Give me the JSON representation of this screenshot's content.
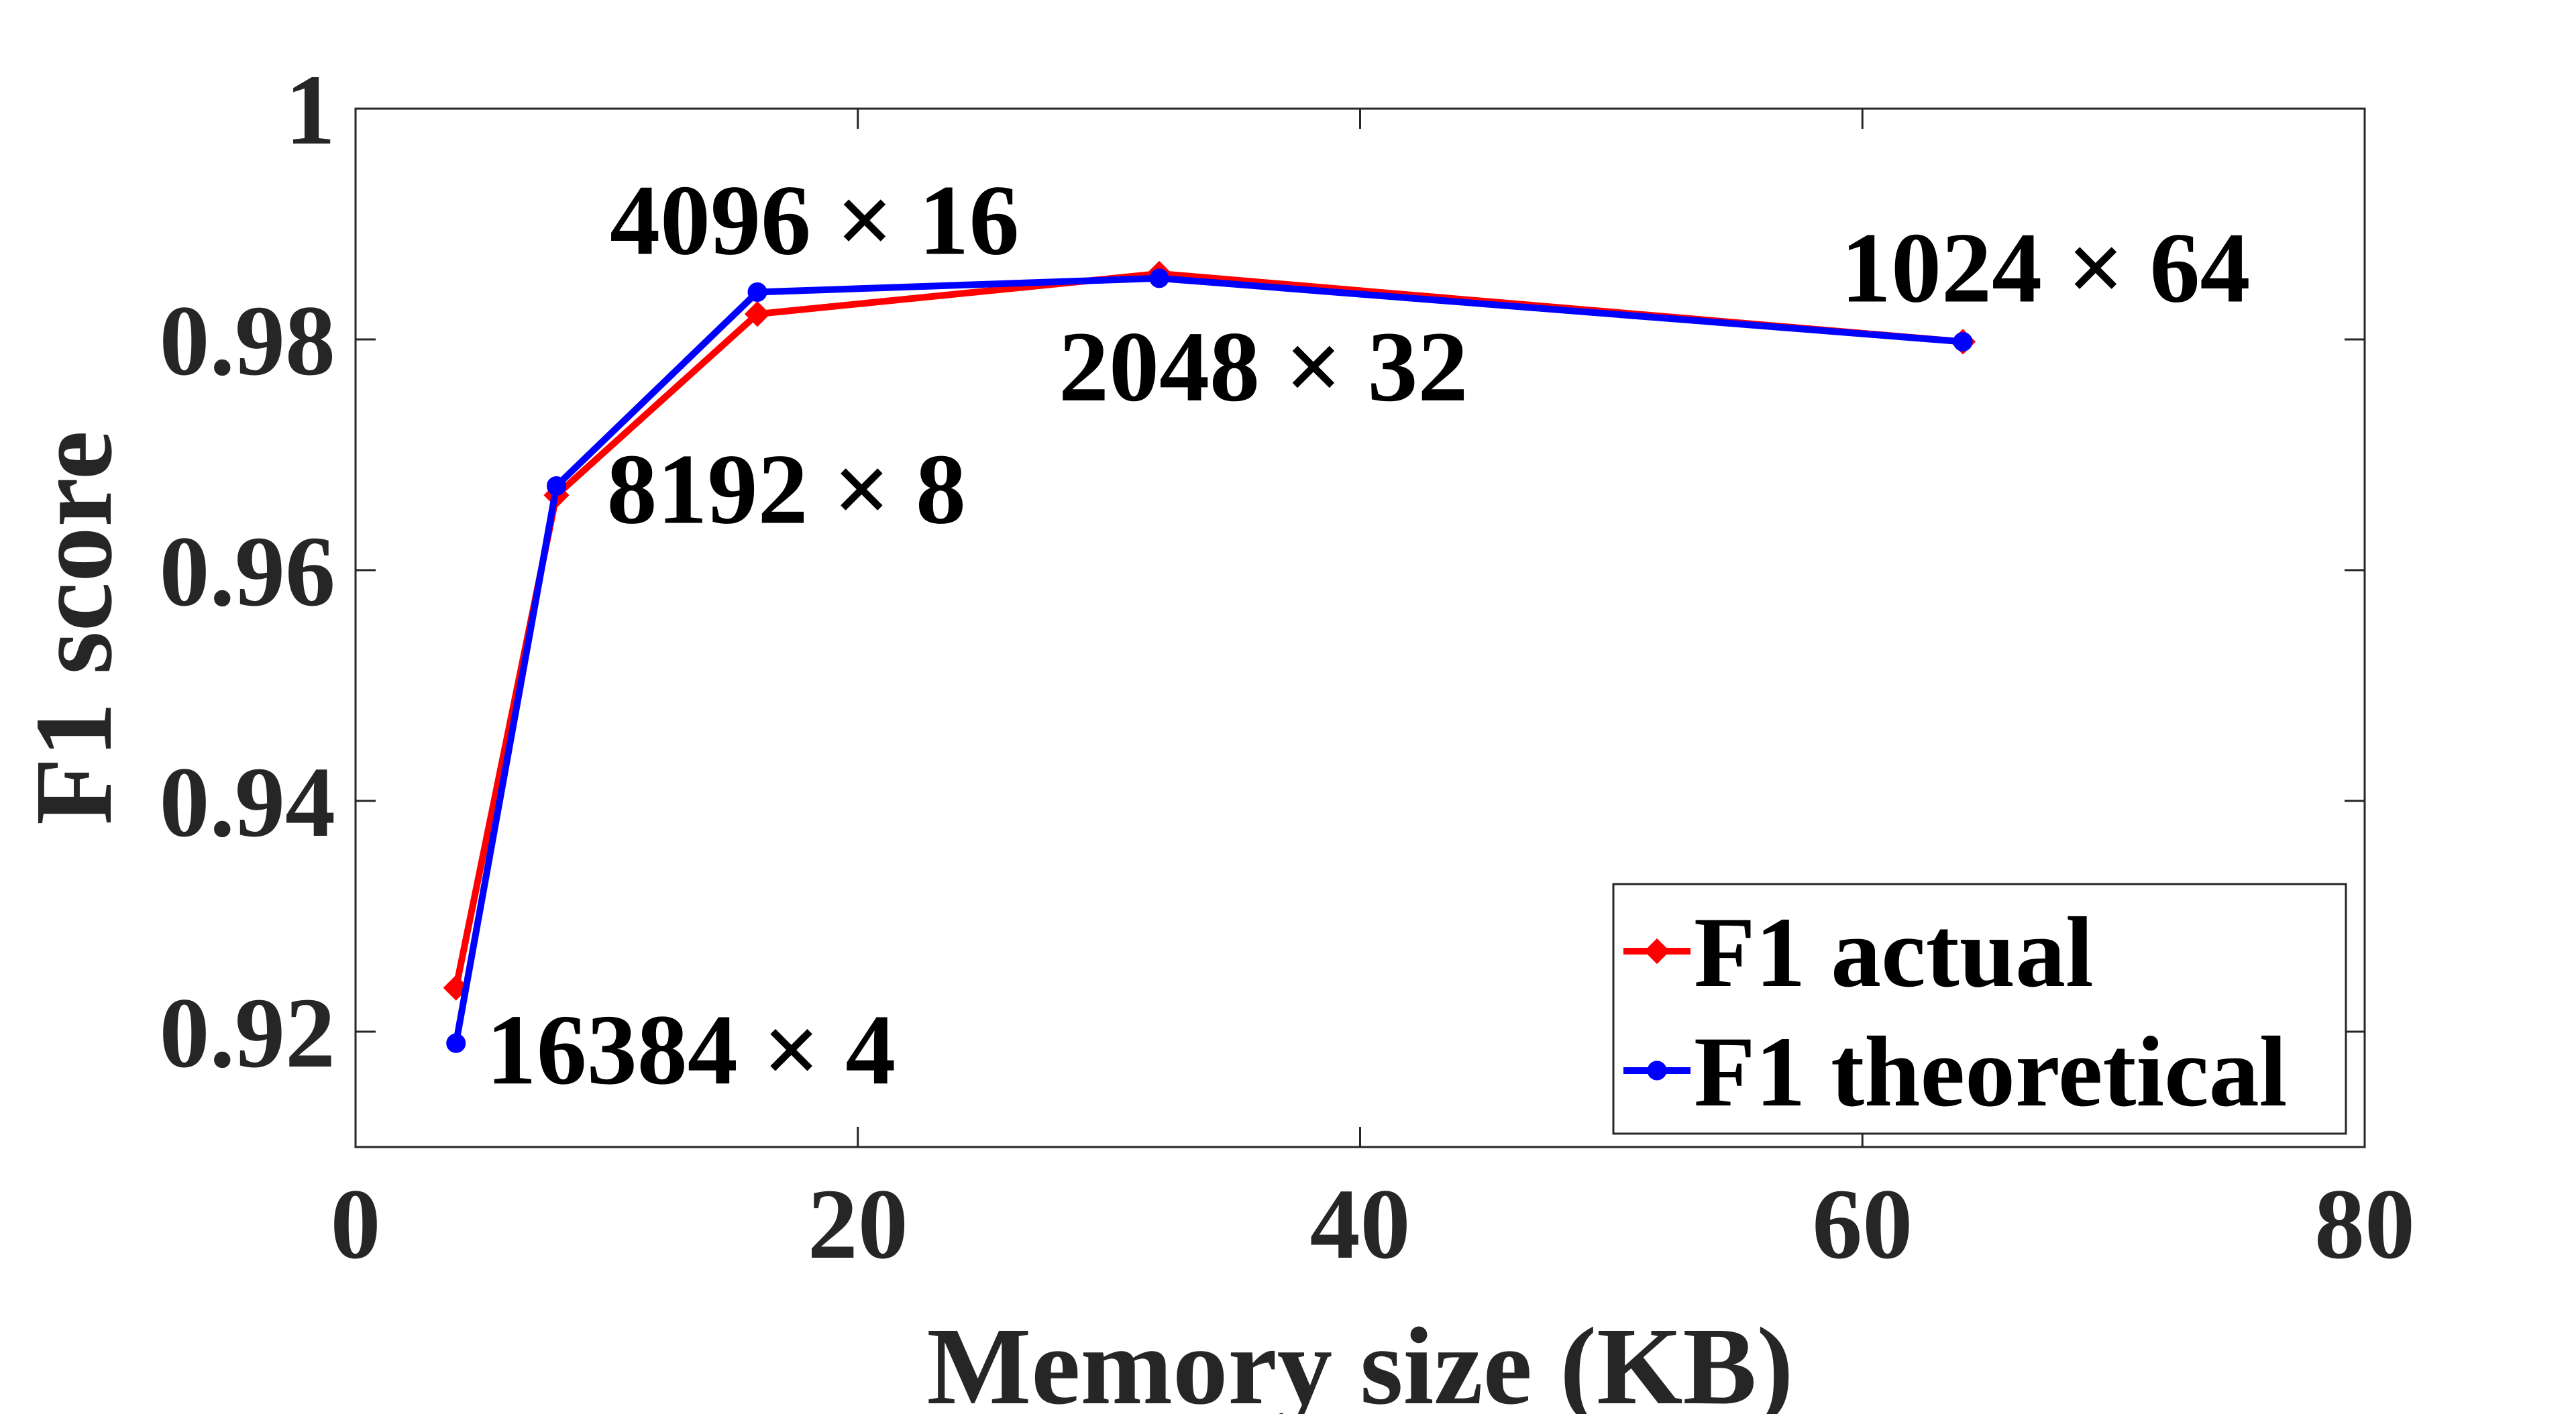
{
  "chart_data": {
    "type": "line",
    "title": "",
    "xlabel": "Memory size (KB)",
    "ylabel": "F1 score",
    "xlim": [
      0,
      80
    ],
    "ylim": [
      0.91,
      1.0
    ],
    "xticks": [
      0,
      20,
      40,
      60,
      80
    ],
    "xtick_labels": [
      "0",
      "20",
      "40",
      "60",
      "80"
    ],
    "yticks": [
      0.92,
      0.94,
      0.96,
      0.98,
      1.0
    ],
    "ytick_labels": [
      "0.92",
      "0.94",
      "0.96",
      "0.98",
      "1"
    ],
    "grid": false,
    "legend_position": "bottom-right",
    "x": [
      4,
      8,
      16,
      32,
      64
    ],
    "series": [
      {
        "name": "F1 actual",
        "color": "#ff0000",
        "marker": "diamond",
        "values": [
          0.9238,
          0.9665,
          0.9822,
          0.9857,
          0.9798
        ]
      },
      {
        "name": "F1 theoretical",
        "color": "#0000ff",
        "marker": "circle",
        "values": [
          0.919,
          0.9673,
          0.9841,
          0.9853,
          0.9798
        ]
      }
    ],
    "annotations": [
      {
        "text": "16384 × 4",
        "x": 4,
        "y": 0.919
      },
      {
        "text": "8192 × 8",
        "x": 8,
        "y": 0.9673
      },
      {
        "text": "4096 × 16",
        "x": 16,
        "y": 0.9841
      },
      {
        "text": "2048 × 32",
        "x": 32,
        "y": 0.9853
      },
      {
        "text": "1024 × 64",
        "x": 64,
        "y": 0.9798
      }
    ]
  }
}
